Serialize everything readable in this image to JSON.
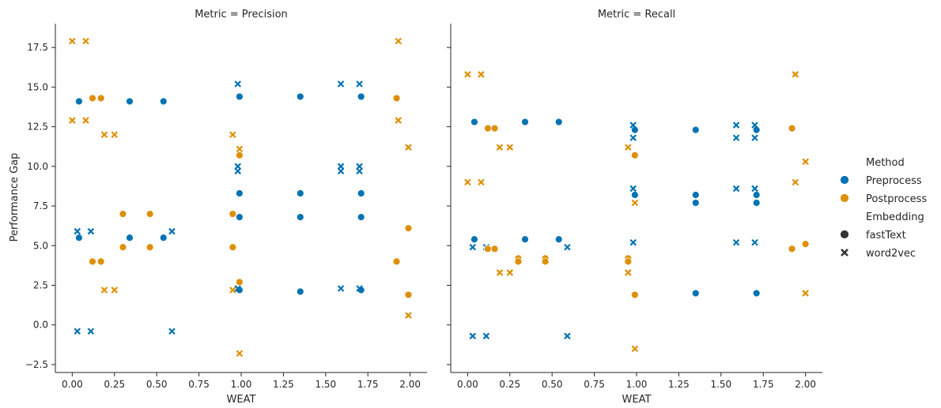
{
  "colors": {
    "Preprocess": "#0173b2",
    "Postprocess": "#de8f05"
  },
  "legend": {
    "method_title": "Method",
    "methods": [
      "Preprocess",
      "Postprocess"
    ],
    "embedding_title": "Embedding",
    "embeddings": [
      {
        "name": "fastText",
        "marker": "circle"
      },
      {
        "name": "word2vec",
        "marker": "x"
      }
    ]
  },
  "chart_data": [
    {
      "type": "scatter",
      "title": "Metric = Precision",
      "xlabel": "WEAT",
      "ylabel": "Performance Gap",
      "xlim": [
        -0.1,
        2.1
      ],
      "ylim": [
        -3.0,
        19.0
      ],
      "xticks": [
        "0.00",
        "0.25",
        "0.50",
        "0.75",
        "1.00",
        "1.25",
        "1.50",
        "1.75",
        "2.00"
      ],
      "yticks": [
        "−2.5",
        "0.0",
        "2.5",
        "5.0",
        "7.5",
        "10.0",
        "12.5",
        "15.0",
        "17.5"
      ],
      "series": [
        {
          "method": "Preprocess",
          "embedding": "fastText",
          "points": [
            [
              0.04,
              14.1
            ],
            [
              0.34,
              14.1
            ],
            [
              0.54,
              14.1
            ],
            [
              0.04,
              5.5
            ],
            [
              0.34,
              5.5
            ],
            [
              0.54,
              5.5
            ],
            [
              0.99,
              14.4
            ],
            [
              0.99,
              8.3
            ],
            [
              0.99,
              6.8
            ],
            [
              0.99,
              2.2
            ],
            [
              1.35,
              14.4
            ],
            [
              1.35,
              8.3
            ],
            [
              1.35,
              6.8
            ],
            [
              1.35,
              2.1
            ],
            [
              1.71,
              14.4
            ],
            [
              1.71,
              8.3
            ],
            [
              1.71,
              6.8
            ],
            [
              1.71,
              2.2
            ]
          ]
        },
        {
          "method": "Preprocess",
          "embedding": "word2vec",
          "points": [
            [
              0.03,
              5.9
            ],
            [
              0.11,
              5.9
            ],
            [
              0.59,
              5.9
            ],
            [
              0.03,
              -0.4
            ],
            [
              0.11,
              -0.4
            ],
            [
              0.59,
              -0.4
            ],
            [
              0.98,
              15.2
            ],
            [
              0.98,
              10.0
            ],
            [
              0.98,
              9.7
            ],
            [
              0.98,
              2.3
            ],
            [
              1.59,
              15.2
            ],
            [
              1.59,
              10.0
            ],
            [
              1.59,
              9.7
            ],
            [
              1.59,
              2.3
            ],
            [
              1.7,
              15.2
            ],
            [
              1.7,
              10.0
            ],
            [
              1.7,
              9.7
            ],
            [
              1.7,
              2.3
            ]
          ]
        },
        {
          "method": "Postprocess",
          "embedding": "fastText",
          "points": [
            [
              0.12,
              14.3
            ],
            [
              0.17,
              14.3
            ],
            [
              0.12,
              4.0
            ],
            [
              0.17,
              4.0
            ],
            [
              0.3,
              7.0
            ],
            [
              0.46,
              7.0
            ],
            [
              0.3,
              4.9
            ],
            [
              0.46,
              4.9
            ],
            [
              0.95,
              7.0
            ],
            [
              0.95,
              4.9
            ],
            [
              0.99,
              10.7
            ],
            [
              0.99,
              2.7
            ],
            [
              1.92,
              14.3
            ],
            [
              1.92,
              4.0
            ],
            [
              1.99,
              6.1
            ],
            [
              1.99,
              1.9
            ]
          ]
        },
        {
          "method": "Postprocess",
          "embedding": "word2vec",
          "points": [
            [
              0.0,
              17.9
            ],
            [
              0.08,
              17.9
            ],
            [
              0.0,
              12.9
            ],
            [
              0.08,
              12.9
            ],
            [
              0.19,
              12.0
            ],
            [
              0.25,
              12.0
            ],
            [
              0.19,
              2.2
            ],
            [
              0.25,
              2.2
            ],
            [
              0.95,
              12.0
            ],
            [
              0.95,
              2.2
            ],
            [
              0.99,
              11.1
            ],
            [
              0.99,
              -1.8
            ],
            [
              1.93,
              17.9
            ],
            [
              1.93,
              12.9
            ],
            [
              1.99,
              11.2
            ],
            [
              1.99,
              0.6
            ]
          ]
        }
      ]
    },
    {
      "type": "scatter",
      "title": "Metric = Recall",
      "xlabel": "WEAT",
      "xlim": [
        -0.1,
        2.1
      ],
      "ylim": [
        -3.0,
        19.0
      ],
      "xticks": [
        "0.00",
        "0.25",
        "0.50",
        "0.75",
        "1.00",
        "1.25",
        "1.50",
        "1.75",
        "2.00"
      ],
      "series": [
        {
          "method": "Preprocess",
          "embedding": "fastText",
          "points": [
            [
              0.04,
              12.8
            ],
            [
              0.34,
              12.8
            ],
            [
              0.54,
              12.8
            ],
            [
              0.04,
              5.4
            ],
            [
              0.34,
              5.4
            ],
            [
              0.54,
              5.4
            ],
            [
              0.99,
              12.3
            ],
            [
              0.99,
              8.2
            ],
            [
              1.35,
              12.3
            ],
            [
              1.35,
              8.2
            ],
            [
              1.35,
              7.7
            ],
            [
              1.35,
              2.0
            ],
            [
              1.71,
              12.3
            ],
            [
              1.71,
              8.2
            ],
            [
              1.71,
              7.7
            ],
            [
              1.71,
              2.0
            ]
          ]
        },
        {
          "method": "Preprocess",
          "embedding": "word2vec",
          "points": [
            [
              0.03,
              4.9
            ],
            [
              0.11,
              4.9
            ],
            [
              0.59,
              4.9
            ],
            [
              0.03,
              -0.7
            ],
            [
              0.11,
              -0.7
            ],
            [
              0.59,
              -0.7
            ],
            [
              0.98,
              12.6
            ],
            [
              0.98,
              11.8
            ],
            [
              0.98,
              8.6
            ],
            [
              0.98,
              5.2
            ],
            [
              1.59,
              12.6
            ],
            [
              1.59,
              11.8
            ],
            [
              1.59,
              8.6
            ],
            [
              1.59,
              5.2
            ],
            [
              1.7,
              12.6
            ],
            [
              1.7,
              11.8
            ],
            [
              1.7,
              8.6
            ],
            [
              1.7,
              5.2
            ]
          ]
        },
        {
          "method": "Postprocess",
          "embedding": "fastText",
          "points": [
            [
              0.12,
              12.4
            ],
            [
              0.16,
              12.4
            ],
            [
              0.12,
              4.8
            ],
            [
              0.16,
              4.8
            ],
            [
              0.3,
              4.2
            ],
            [
              0.46,
              4.2
            ],
            [
              0.3,
              4.0
            ],
            [
              0.46,
              4.0
            ],
            [
              0.95,
              4.2
            ],
            [
              0.95,
              4.0
            ],
            [
              0.99,
              10.7
            ],
            [
              0.99,
              1.9
            ],
            [
              1.92,
              12.4
            ],
            [
              1.92,
              4.8
            ],
            [
              2.0,
              5.1
            ]
          ]
        },
        {
          "method": "Postprocess",
          "embedding": "word2vec",
          "points": [
            [
              0.0,
              15.8
            ],
            [
              0.08,
              15.8
            ],
            [
              0.0,
              9.0
            ],
            [
              0.08,
              9.0
            ],
            [
              0.19,
              11.2
            ],
            [
              0.25,
              11.2
            ],
            [
              0.19,
              3.3
            ],
            [
              0.25,
              3.3
            ],
            [
              0.95,
              11.2
            ],
            [
              0.95,
              3.3
            ],
            [
              0.99,
              7.7
            ],
            [
              0.99,
              -1.5
            ],
            [
              1.94,
              15.8
            ],
            [
              1.94,
              9.0
            ],
            [
              2.0,
              10.3
            ],
            [
              2.0,
              2.0
            ]
          ]
        }
      ]
    }
  ]
}
